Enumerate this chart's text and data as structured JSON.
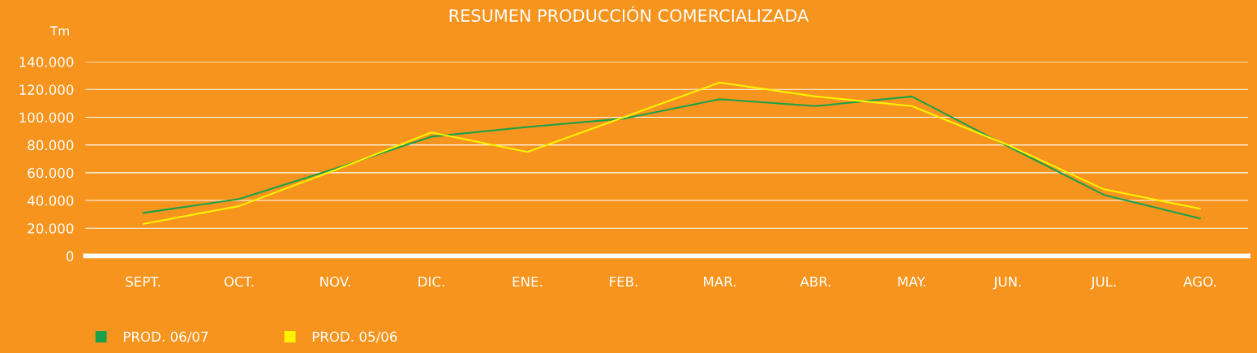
{
  "chart_data": {
    "type": "line",
    "title": "RESUMEN PRODUCCIÓN COMERCIALIZADA",
    "ylabel": "Tm",
    "categories": [
      "SEPT.",
      "OCT.",
      "NOV.",
      "DIC.",
      "ENE.",
      "FEB.",
      "MAR.",
      "ABR.",
      "MAY.",
      "JUN.",
      "JUL.",
      "AGO."
    ],
    "series": [
      {
        "name": "PROD. 06/07",
        "color": "#1aa14a",
        "values": [
          31000,
          41000,
          63000,
          86000,
          93000,
          99000,
          113000,
          108000,
          115000,
          79000,
          44000,
          27000
        ]
      },
      {
        "name": "PROD. 05/06",
        "color": "#fff200",
        "values": [
          23000,
          36000,
          62000,
          89000,
          75000,
          100000,
          125000,
          115000,
          108000,
          80000,
          48000,
          34000
        ]
      }
    ],
    "ylim": [
      0,
      140000
    ],
    "yticks": [
      0,
      {
        "value": 20000,
        "label": "20.000"
      },
      {
        "value": 40000,
        "label": "40.000"
      },
      {
        "value": 60000,
        "label": "60.000"
      },
      {
        "value": 80000,
        "label": "80.000"
      },
      {
        "value": 100000,
        "label": "100.000"
      },
      {
        "value": 120000,
        "label": "120.000"
      },
      {
        "value": 140000,
        "label": "140.000"
      }
    ],
    "grid": "y",
    "legend": "bottom left",
    "marker": "none",
    "line_style": "solid"
  }
}
